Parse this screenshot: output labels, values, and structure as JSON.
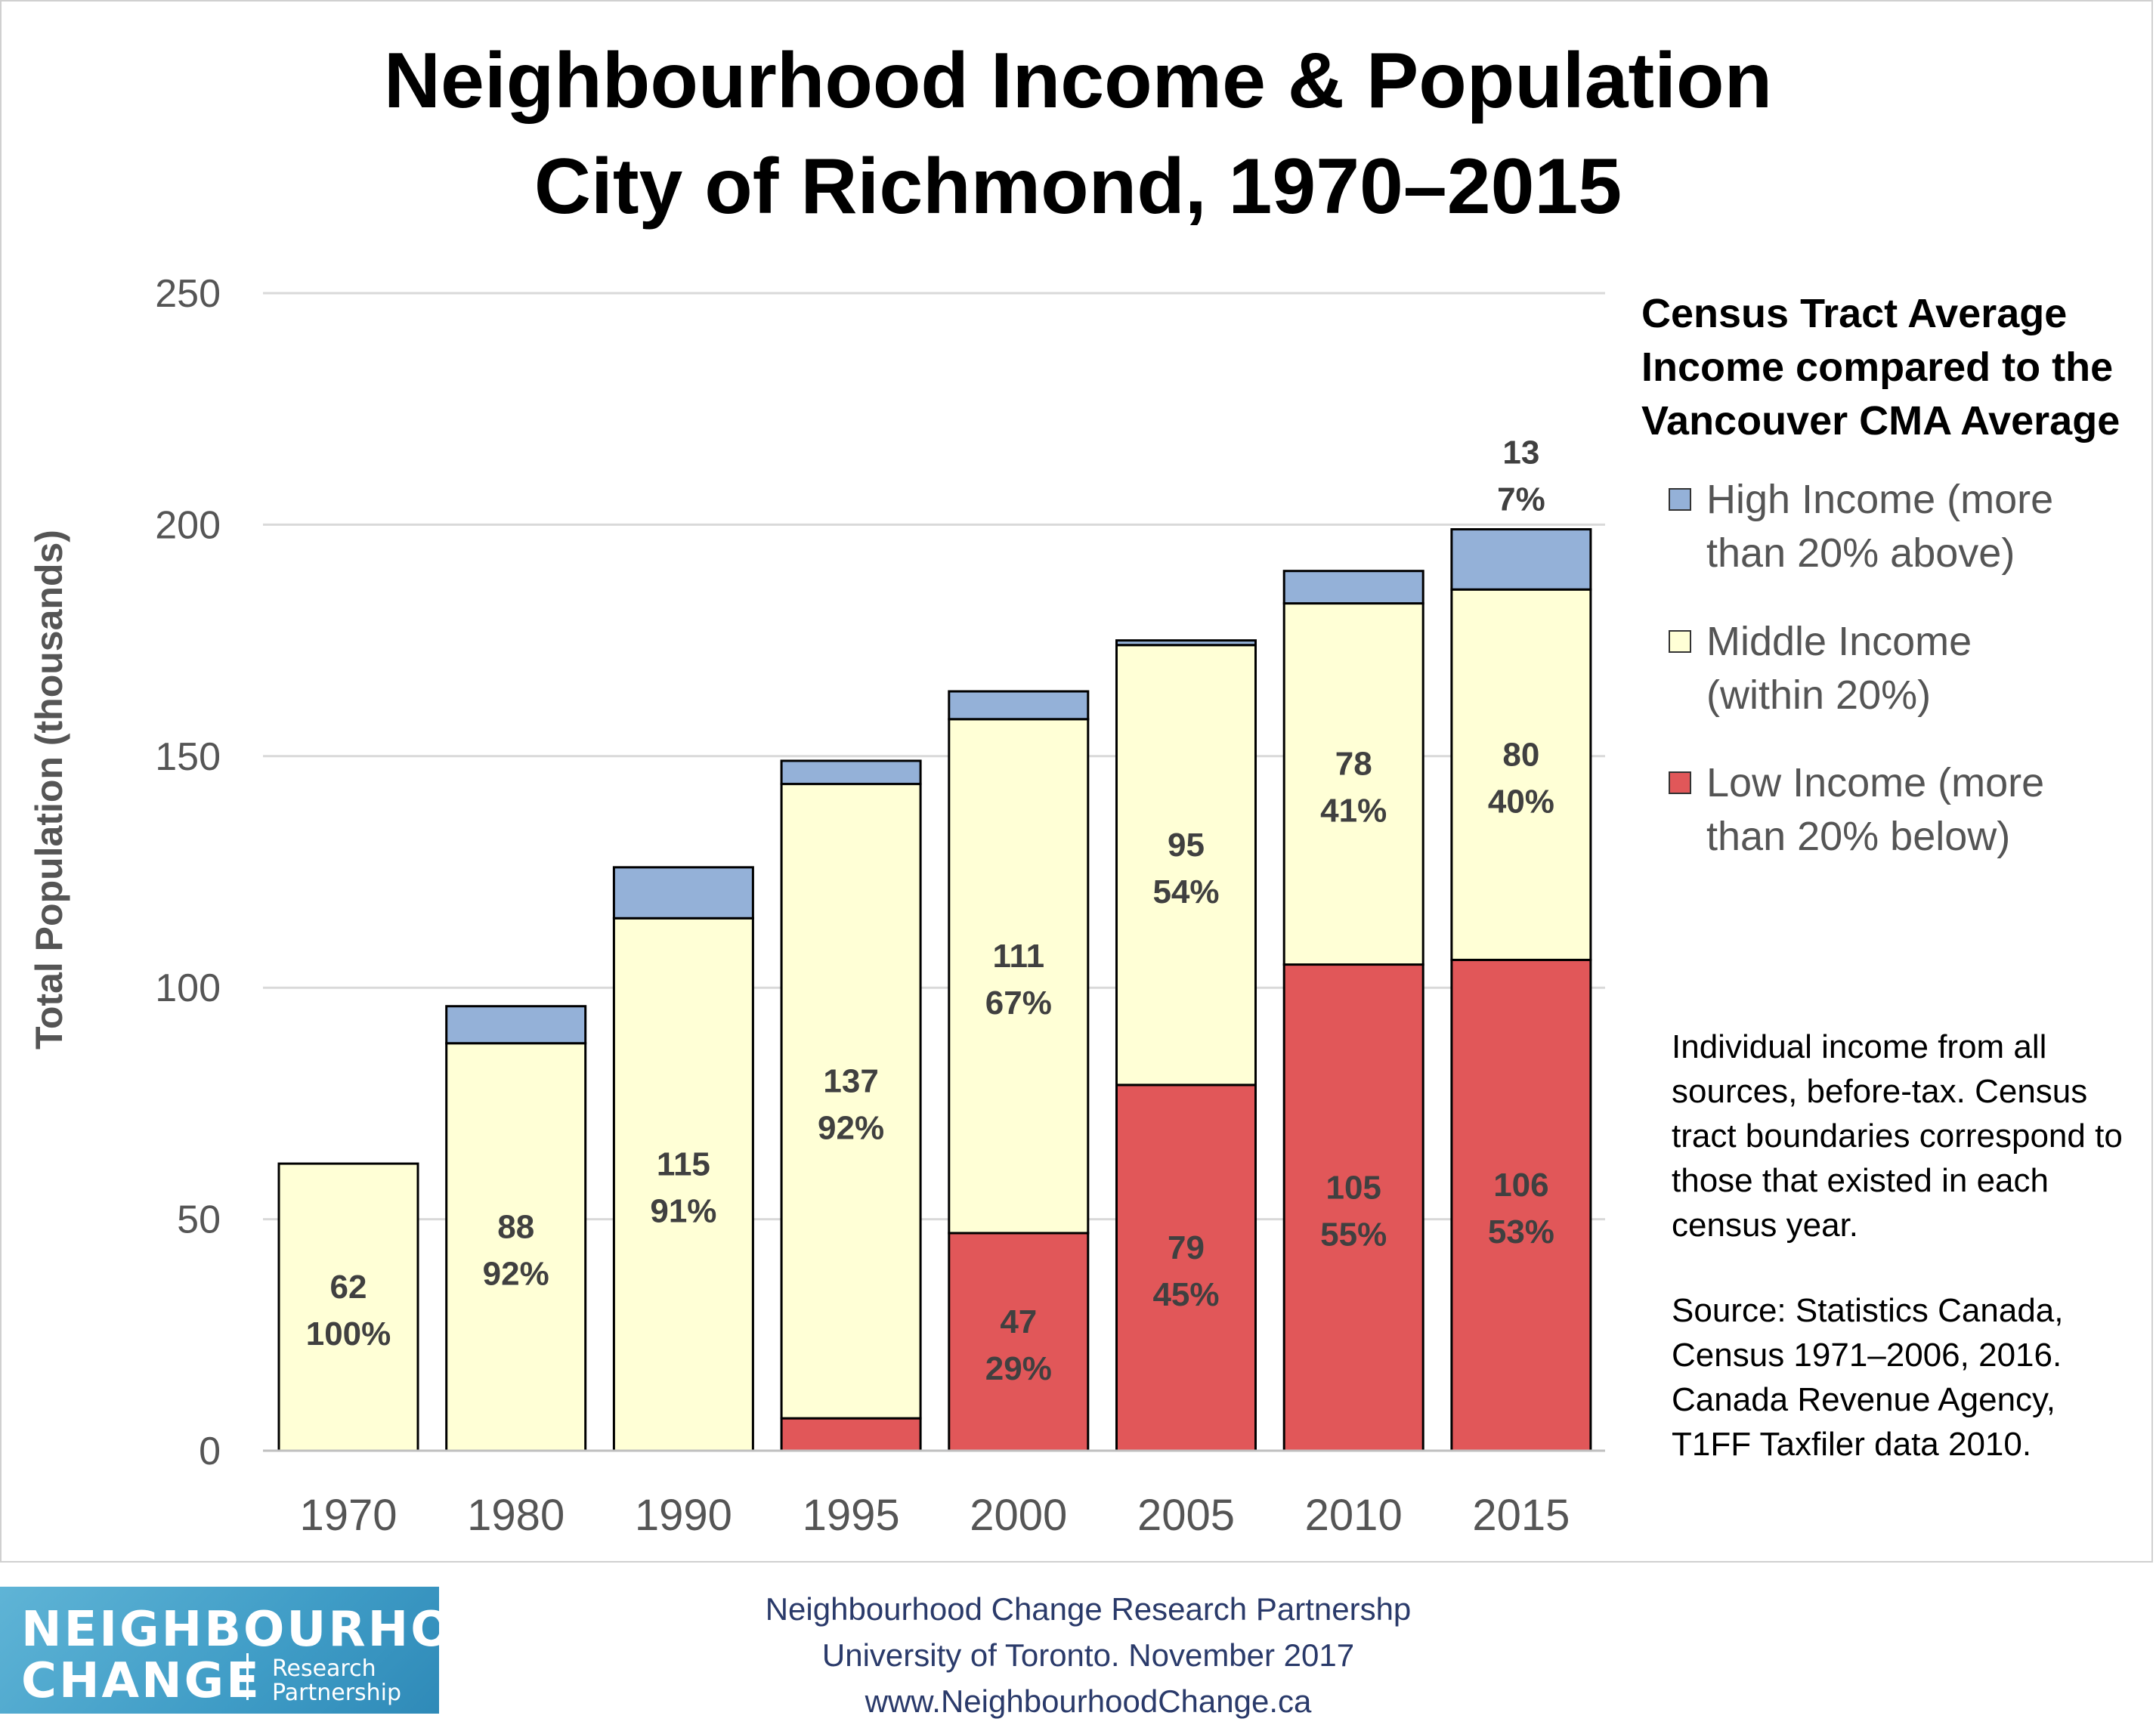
{
  "chart_data": {
    "type": "bar",
    "stacked": true,
    "title": "Neighbourhood Income & Population",
    "subtitle": "City of Richmond, 1970–2015",
    "ylabel": "Total Population (thousands)",
    "xlabel": "",
    "ylim": [
      0,
      250
    ],
    "yticks": [
      "0",
      "50",
      "100",
      "150",
      "200",
      "250"
    ],
    "grid": true,
    "legend_title": "Census Tract Average Income compared to the Vancouver CMA Average",
    "legend_position": "right",
    "categories": [
      "1970",
      "1980",
      "1990",
      "1995",
      "2000",
      "2005",
      "2010",
      "2015"
    ],
    "series": [
      {
        "name": "Low Income (more than 20% below)",
        "color": "#e15759",
        "values": [
          0,
          0,
          0,
          7,
          47,
          79,
          105,
          106
        ],
        "labels": [
          null,
          null,
          null,
          null,
          {
            "value": "47",
            "pct": "29%"
          },
          {
            "value": "79",
            "pct": "45%"
          },
          {
            "value": "105",
            "pct": "55%"
          },
          {
            "value": "106",
            "pct": "53%"
          }
        ]
      },
      {
        "name": "Middle Income (within 20%)",
        "color": "#ffffd6",
        "values": [
          62,
          88,
          115,
          137,
          111,
          95,
          78,
          80
        ],
        "labels": [
          {
            "value": "62",
            "pct": "100%"
          },
          {
            "value": "88",
            "pct": "92%"
          },
          {
            "value": "115",
            "pct": "91%"
          },
          {
            "value": "137",
            "pct": "92%"
          },
          {
            "value": "111",
            "pct": "67%"
          },
          {
            "value": "95",
            "pct": "54%"
          },
          {
            "value": "78",
            "pct": "41%"
          },
          {
            "value": "80",
            "pct": "40%"
          }
        ]
      },
      {
        "name": "High Income (more than 20% above)",
        "color": "#94b1d8",
        "values": [
          0,
          8,
          11,
          5,
          6,
          1,
          7,
          13
        ],
        "labels": [
          null,
          null,
          null,
          null,
          null,
          null,
          null,
          {
            "value": "13",
            "pct": "7%"
          }
        ]
      }
    ]
  },
  "notes": {
    "income": "Individual income from all sources, before-tax. Census tract boundaries correspond to those that existed in each census year.",
    "source": "Source: Statistics Canada, Census 1971–2006, 2016. Canada Revenue Agency, T1FF Taxfiler data 2010."
  },
  "footer": {
    "line1": "Neighbourhood Change Research Partnershp",
    "line2": "University of Toronto. November 2017",
    "line3": "www.NeighbourhoodChange.ca"
  },
  "logo": {
    "line1": "NEIGHBOURHOOD",
    "line2": "CHANGE",
    "tag1": "Research",
    "tag2": "Partnership"
  }
}
